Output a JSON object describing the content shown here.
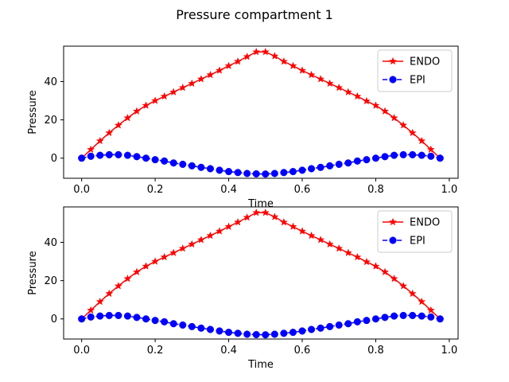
{
  "figure": {
    "title": "Pressure compartment 1"
  },
  "chart_data": [
    {
      "type": "line",
      "xlabel": "Time",
      "ylabel": "Pressure",
      "xlim": [
        -0.049,
        1.024
      ],
      "ylim": [
        -10.5,
        58.5
      ],
      "xticks": [
        0.0,
        0.2,
        0.4,
        0.6,
        0.8,
        1.0
      ],
      "xtick_labels": [
        "0.0",
        "0.2",
        "0.4",
        "0.6",
        "0.8",
        "1.0"
      ],
      "yticks": [
        0,
        20,
        40
      ],
      "ytick_labels": [
        "0",
        "20",
        "40"
      ],
      "grid": false,
      "legend_position": "top-right",
      "x": [
        0.0,
        0.025,
        0.05,
        0.075,
        0.1,
        0.125,
        0.15,
        0.175,
        0.2,
        0.225,
        0.25,
        0.275,
        0.3,
        0.325,
        0.35,
        0.375,
        0.4,
        0.425,
        0.45,
        0.475,
        0.5,
        0.525,
        0.55,
        0.575,
        0.6,
        0.625,
        0.65,
        0.675,
        0.7,
        0.725,
        0.75,
        0.775,
        0.8,
        0.825,
        0.85,
        0.875,
        0.9,
        0.925,
        0.95,
        0.975
      ],
      "series": [
        {
          "name": "ENDO",
          "color": "#ff0000",
          "marker": "star",
          "linestyle": "solid",
          "values": [
            0.0,
            4.5,
            9.0,
            13.2,
            17.2,
            21.0,
            24.5,
            27.5,
            30.0,
            32.3,
            34.5,
            36.8,
            39.0,
            41.3,
            43.5,
            45.8,
            48.2,
            50.5,
            53.0,
            55.5,
            55.5,
            53.3,
            50.5,
            48.2,
            45.8,
            43.5,
            41.3,
            39.0,
            36.8,
            34.5,
            32.3,
            29.8,
            27.5,
            24.5,
            21.0,
            17.2,
            13.2,
            9.0,
            4.5,
            0.0
          ]
        },
        {
          "name": "EPI",
          "color": "#0000ff",
          "marker": "circle",
          "linestyle": "dashed",
          "values": [
            0.0,
            1.0,
            1.5,
            1.8,
            1.8,
            1.5,
            0.8,
            0.0,
            -0.8,
            -1.5,
            -2.5,
            -3.2,
            -4.0,
            -4.8,
            -5.5,
            -6.3,
            -7.0,
            -7.5,
            -8.0,
            -8.2,
            -8.3,
            -8.0,
            -7.5,
            -7.0,
            -6.3,
            -5.5,
            -4.8,
            -4.0,
            -3.2,
            -2.5,
            -1.5,
            -0.8,
            0.0,
            0.8,
            1.5,
            1.8,
            1.8,
            1.5,
            1.0,
            0.0
          ]
        }
      ]
    },
    {
      "type": "line",
      "xlabel": "Time",
      "ylabel": "Pressure",
      "xlim": [
        -0.049,
        1.024
      ],
      "ylim": [
        -10.5,
        58.5
      ],
      "xticks": [
        0.0,
        0.2,
        0.4,
        0.6,
        0.8,
        1.0
      ],
      "xtick_labels": [
        "0.0",
        "0.2",
        "0.4",
        "0.6",
        "0.8",
        "1.0"
      ],
      "yticks": [
        0,
        20,
        40
      ],
      "ytick_labels": [
        "0",
        "20",
        "40"
      ],
      "grid": false,
      "legend_position": "top-right",
      "x": [
        0.0,
        0.025,
        0.05,
        0.075,
        0.1,
        0.125,
        0.15,
        0.175,
        0.2,
        0.225,
        0.25,
        0.275,
        0.3,
        0.325,
        0.35,
        0.375,
        0.4,
        0.425,
        0.45,
        0.475,
        0.5,
        0.525,
        0.55,
        0.575,
        0.6,
        0.625,
        0.65,
        0.675,
        0.7,
        0.725,
        0.75,
        0.775,
        0.8,
        0.825,
        0.85,
        0.875,
        0.9,
        0.925,
        0.95,
        0.975
      ],
      "series": [
        {
          "name": "ENDO",
          "color": "#ff0000",
          "marker": "star",
          "linestyle": "solid",
          "values": [
            0.0,
            4.5,
            9.0,
            13.2,
            17.2,
            21.0,
            24.5,
            27.5,
            30.0,
            32.3,
            34.5,
            36.8,
            39.0,
            41.3,
            43.5,
            45.8,
            48.2,
            50.5,
            53.0,
            55.5,
            55.5,
            53.3,
            50.5,
            48.2,
            45.8,
            43.5,
            41.3,
            39.0,
            36.8,
            34.5,
            32.3,
            29.8,
            27.5,
            24.5,
            21.0,
            17.2,
            13.2,
            9.0,
            4.5,
            0.0
          ]
        },
        {
          "name": "EPI",
          "color": "#0000ff",
          "marker": "circle",
          "linestyle": "dashed",
          "values": [
            0.0,
            1.0,
            1.5,
            1.8,
            1.8,
            1.5,
            0.8,
            0.0,
            -0.8,
            -1.5,
            -2.5,
            -3.2,
            -4.0,
            -4.8,
            -5.5,
            -6.3,
            -7.0,
            -7.5,
            -8.0,
            -8.2,
            -8.3,
            -8.0,
            -7.5,
            -7.0,
            -6.3,
            -5.5,
            -4.8,
            -4.0,
            -3.2,
            -2.5,
            -1.5,
            -0.8,
            0.0,
            0.8,
            1.5,
            1.8,
            1.8,
            1.5,
            1.0,
            0.0
          ]
        }
      ]
    }
  ]
}
